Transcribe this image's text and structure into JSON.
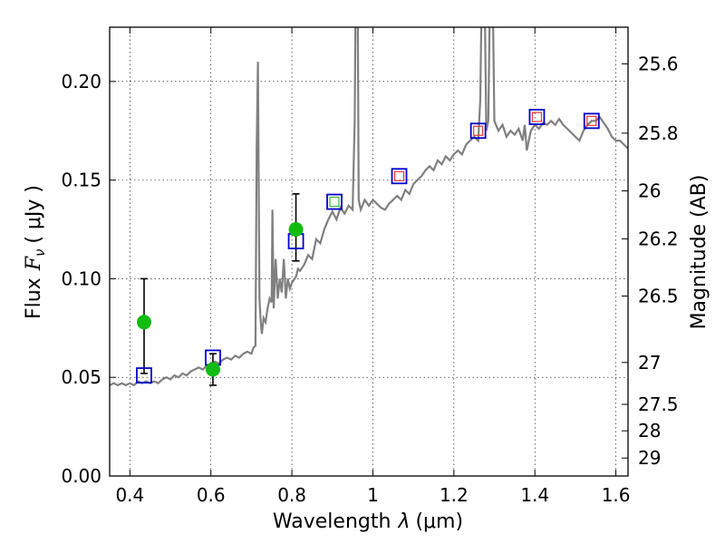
{
  "chart_data": {
    "type": "scatter",
    "xlabel_prefix": "Wavelength",
    "xlabel_symbol": "λ",
    "xlabel_unit": "(μm)",
    "ylabel_prefix": "Flux",
    "ylabel_symbol": "F",
    "ylabel_subscript": "ν",
    "ylabel_unit": "( μJy )",
    "y2label": "Magnitude (AB)",
    "xlim": [
      0.35,
      1.63
    ],
    "ylim": [
      0.0,
      0.2275
    ],
    "x_ticks": [
      0.4,
      0.6,
      0.8,
      1.0,
      1.2,
      1.4,
      1.6
    ],
    "x_tick_labels": [
      "0.4",
      "0.6",
      "0.8",
      "1",
      "1.2",
      "1.4",
      "1.6"
    ],
    "y_ticks": [
      0.0,
      0.05,
      0.1,
      0.15,
      0.2
    ],
    "y_tick_labels": [
      "0.00",
      "0.05",
      "0.10",
      "0.15",
      "0.20"
    ],
    "y2_ticks": [
      25.6,
      25.8,
      26,
      26.2,
      26.5,
      27,
      27.5,
      28,
      29
    ],
    "y2_tick_labels": [
      "25.6",
      "25.8",
      "26",
      "26.2",
      "26.5",
      "27",
      "27.5",
      "28",
      "29"
    ],
    "grid": true,
    "colors": {
      "spectrum": "#808080",
      "observed": "#11bb11",
      "model_box": "#0000cc",
      "inner_red": "#ee3333",
      "inner_green": "#33bb33",
      "errorbar": "#000000"
    },
    "spectrum": [
      [
        0.35,
        0.046
      ],
      [
        0.36,
        0.047
      ],
      [
        0.37,
        0.046
      ],
      [
        0.38,
        0.047
      ],
      [
        0.39,
        0.046
      ],
      [
        0.4,
        0.047
      ],
      [
        0.41,
        0.046
      ],
      [
        0.42,
        0.048
      ],
      [
        0.43,
        0.047
      ],
      [
        0.44,
        0.048
      ],
      [
        0.45,
        0.047
      ],
      [
        0.46,
        0.048
      ],
      [
        0.47,
        0.047
      ],
      [
        0.48,
        0.049
      ],
      [
        0.49,
        0.05
      ],
      [
        0.5,
        0.049
      ],
      [
        0.51,
        0.051
      ],
      [
        0.52,
        0.05
      ],
      [
        0.53,
        0.052
      ],
      [
        0.54,
        0.051
      ],
      [
        0.55,
        0.053
      ],
      [
        0.56,
        0.054
      ],
      [
        0.57,
        0.055
      ],
      [
        0.58,
        0.054
      ],
      [
        0.59,
        0.056
      ],
      [
        0.6,
        0.057
      ],
      [
        0.61,
        0.058
      ],
      [
        0.62,
        0.057
      ],
      [
        0.63,
        0.059
      ],
      [
        0.64,
        0.06
      ],
      [
        0.65,
        0.059
      ],
      [
        0.66,
        0.061
      ],
      [
        0.67,
        0.06
      ],
      [
        0.68,
        0.062
      ],
      [
        0.69,
        0.063
      ],
      [
        0.7,
        0.062
      ],
      [
        0.705,
        0.065
      ],
      [
        0.71,
        0.066
      ],
      [
        0.713,
        0.165
      ],
      [
        0.716,
        0.21
      ],
      [
        0.72,
        0.09
      ],
      [
        0.723,
        0.078
      ],
      [
        0.726,
        0.072
      ],
      [
        0.73,
        0.08
      ],
      [
        0.735,
        0.078
      ],
      [
        0.74,
        0.085
      ],
      [
        0.745,
        0.09
      ],
      [
        0.75,
        0.088
      ],
      [
        0.752,
        0.135
      ],
      [
        0.755,
        0.085
      ],
      [
        0.76,
        0.11
      ],
      [
        0.765,
        0.09
      ],
      [
        0.77,
        0.1
      ],
      [
        0.775,
        0.093
      ],
      [
        0.78,
        0.11
      ],
      [
        0.785,
        0.09
      ],
      [
        0.79,
        0.1
      ],
      [
        0.795,
        0.095
      ],
      [
        0.8,
        0.098
      ],
      [
        0.81,
        0.101
      ],
      [
        0.815,
        0.105
      ],
      [
        0.82,
        0.104
      ],
      [
        0.83,
        0.107
      ],
      [
        0.84,
        0.112
      ],
      [
        0.85,
        0.11
      ],
      [
        0.86,
        0.12
      ],
      [
        0.87,
        0.118
      ],
      [
        0.88,
        0.125
      ],
      [
        0.89,
        0.13
      ],
      [
        0.9,
        0.134
      ],
      [
        0.91,
        0.13
      ],
      [
        0.92,
        0.136
      ],
      [
        0.93,
        0.133
      ],
      [
        0.94,
        0.137
      ],
      [
        0.95,
        0.135
      ],
      [
        0.955,
        0.18
      ],
      [
        0.958,
        0.26
      ],
      [
        0.962,
        0.26
      ],
      [
        0.965,
        0.14
      ],
      [
        0.97,
        0.135
      ],
      [
        0.98,
        0.14
      ],
      [
        0.99,
        0.137
      ],
      [
        1.0,
        0.14
      ],
      [
        1.01,
        0.138
      ],
      [
        1.02,
        0.136
      ],
      [
        1.03,
        0.135
      ],
      [
        1.04,
        0.138
      ],
      [
        1.05,
        0.14
      ],
      [
        1.06,
        0.142
      ],
      [
        1.07,
        0.14
      ],
      [
        1.08,
        0.145
      ],
      [
        1.09,
        0.143
      ],
      [
        1.1,
        0.148
      ],
      [
        1.11,
        0.15
      ],
      [
        1.12,
        0.152
      ],
      [
        1.13,
        0.155
      ],
      [
        1.14,
        0.157
      ],
      [
        1.15,
        0.155
      ],
      [
        1.16,
        0.16
      ],
      [
        1.17,
        0.158
      ],
      [
        1.18,
        0.162
      ],
      [
        1.19,
        0.16
      ],
      [
        1.2,
        0.163
      ],
      [
        1.21,
        0.165
      ],
      [
        1.22,
        0.163
      ],
      [
        1.23,
        0.168
      ],
      [
        1.24,
        0.17
      ],
      [
        1.25,
        0.172
      ],
      [
        1.26,
        0.17
      ],
      [
        1.265,
        0.19
      ],
      [
        1.27,
        0.26
      ],
      [
        1.275,
        0.26
      ],
      [
        1.28,
        0.175
      ],
      [
        1.285,
        0.18
      ],
      [
        1.29,
        0.26
      ],
      [
        1.295,
        0.26
      ],
      [
        1.3,
        0.18
      ],
      [
        1.31,
        0.175
      ],
      [
        1.32,
        0.178
      ],
      [
        1.33,
        0.172
      ],
      [
        1.34,
        0.175
      ],
      [
        1.35,
        0.173
      ],
      [
        1.36,
        0.176
      ],
      [
        1.37,
        0.17
      ],
      [
        1.375,
        0.178
      ],
      [
        1.38,
        0.165
      ],
      [
        1.385,
        0.17
      ],
      [
        1.39,
        0.175
      ],
      [
        1.4,
        0.178
      ],
      [
        1.41,
        0.176
      ],
      [
        1.42,
        0.179
      ],
      [
        1.43,
        0.178
      ],
      [
        1.44,
        0.18
      ],
      [
        1.45,
        0.178
      ],
      [
        1.46,
        0.181
      ],
      [
        1.47,
        0.178
      ],
      [
        1.48,
        0.176
      ],
      [
        1.49,
        0.174
      ],
      [
        1.5,
        0.172
      ],
      [
        1.51,
        0.17
      ],
      [
        1.52,
        0.175
      ],
      [
        1.53,
        0.178
      ],
      [
        1.54,
        0.18
      ],
      [
        1.55,
        0.18
      ],
      [
        1.56,
        0.182
      ],
      [
        1.57,
        0.179
      ],
      [
        1.58,
        0.176
      ],
      [
        1.59,
        0.172
      ],
      [
        1.6,
        0.17
      ],
      [
        1.61,
        0.17
      ],
      [
        1.62,
        0.168
      ],
      [
        1.63,
        0.166
      ]
    ],
    "observed": [
      {
        "x": 0.435,
        "y": 0.078,
        "err": [
          0.052,
          0.1
        ]
      },
      {
        "x": 0.605,
        "y": 0.054,
        "err": [
          0.046,
          0.062
        ]
      },
      {
        "x": 0.81,
        "y": 0.125,
        "err": [
          0.109,
          0.143
        ]
      }
    ],
    "model_boxes": [
      {
        "x": 0.435,
        "y": 0.051,
        "inner": "none"
      },
      {
        "x": 0.605,
        "y": 0.06,
        "inner": "none"
      },
      {
        "x": 0.81,
        "y": 0.119,
        "inner": "none"
      },
      {
        "x": 0.905,
        "y": 0.139,
        "inner": "green"
      },
      {
        "x": 1.065,
        "y": 0.152,
        "inner": "red"
      },
      {
        "x": 1.26,
        "y": 0.175,
        "inner": "red"
      },
      {
        "x": 1.405,
        "y": 0.182,
        "inner": "red"
      },
      {
        "x": 1.54,
        "y": 0.18,
        "inner": "red"
      }
    ]
  }
}
